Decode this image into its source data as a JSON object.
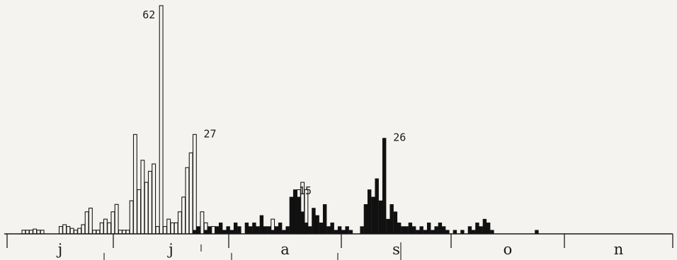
{
  "chart_data": {
    "type": "bar",
    "title": "",
    "xlabel": "",
    "ylabel": "",
    "months": [
      "j",
      "j",
      "a",
      "s",
      "o",
      "n"
    ],
    "peak_labels": [
      "62",
      "27",
      "15",
      "26"
    ],
    "ylim": [
      0,
      62
    ],
    "colors": {
      "open_bar": "#f4f3ef",
      "solid_bar": "#111111",
      "line": "#1a1a1a"
    },
    "series": [
      {
        "fill": "open",
        "values": [
          1,
          1,
          1,
          1.3,
          1,
          1,
          0,
          0,
          0,
          0,
          2,
          2.5,
          2,
          1.5,
          1,
          1.5,
          2.5,
          6,
          7,
          1,
          1,
          3,
          4,
          3,
          6,
          8,
          1,
          1,
          1,
          9,
          27,
          12,
          20,
          14,
          17,
          19,
          2,
          62,
          2,
          4,
          3,
          3,
          6,
          10,
          18,
          22,
          27,
          1,
          6,
          3,
          1,
          2,
          1,
          1,
          0,
          0,
          0,
          0,
          0,
          0,
          0,
          0,
          0,
          0,
          0,
          0,
          0,
          4,
          0,
          0,
          0,
          0,
          0,
          0,
          12,
          14,
          12,
          0,
          0,
          0,
          0,
          0,
          0,
          0,
          0,
          0,
          0,
          0,
          0,
          0,
          0,
          0,
          0,
          0,
          0,
          0,
          0,
          0,
          0,
          0,
          0,
          0,
          0,
          0,
          0,
          0,
          0,
          0,
          0,
          0,
          0,
          0,
          0,
          0,
          0,
          0,
          0,
          0,
          0,
          0,
          0,
          0,
          0,
          0,
          0,
          0,
          0,
          0,
          0,
          0,
          0,
          0,
          0,
          0,
          0,
          0,
          0,
          0,
          0,
          0,
          0,
          0,
          0,
          0,
          0,
          0,
          0,
          0,
          0
        ]
      },
      {
        "fill": "solid",
        "values": [
          0,
          0,
          0,
          0,
          0,
          0,
          0,
          0,
          0,
          0,
          0,
          0,
          0,
          0,
          0,
          0,
          0,
          0,
          0,
          0,
          0,
          0,
          0,
          0,
          0,
          0,
          0,
          0,
          0,
          0,
          0,
          0,
          0,
          0,
          0,
          0,
          0,
          0,
          0,
          0,
          0,
          0,
          0,
          0,
          0,
          0,
          1,
          2,
          0,
          1,
          2,
          0,
          2,
          3,
          1,
          2,
          1,
          3,
          2,
          0,
          3,
          2,
          3,
          2,
          5,
          2,
          2,
          1,
          2,
          3,
          1,
          2,
          10,
          12,
          10,
          6,
          3,
          2,
          7,
          5,
          3,
          8,
          2,
          3,
          1,
          2,
          1,
          2,
          1,
          0,
          0,
          2,
          8,
          12,
          10,
          15,
          9,
          26,
          4,
          8,
          6,
          3,
          2,
          2,
          3,
          2,
          1,
          2,
          1,
          3,
          1,
          2,
          3,
          2,
          1,
          0,
          1,
          0,
          1,
          0,
          2,
          1,
          3,
          2,
          4,
          3,
          1,
          0,
          0,
          0,
          0,
          0,
          0,
          0,
          0,
          0,
          0,
          0,
          1,
          0,
          0,
          0,
          0,
          0,
          0,
          0,
          0,
          0,
          0,
          0,
          0,
          0
        ]
      }
    ]
  }
}
